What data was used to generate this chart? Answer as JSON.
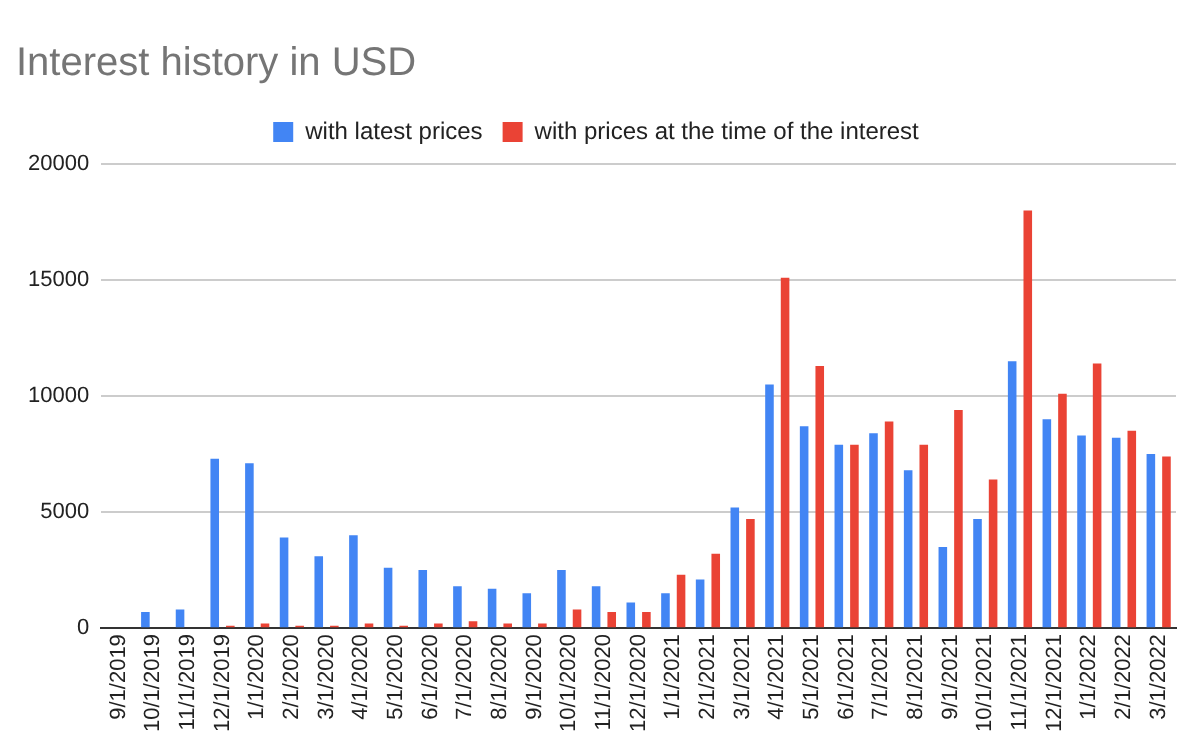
{
  "chart_data": {
    "type": "bar",
    "title": "Interest history in USD",
    "categories": [
      "9/1/2019",
      "10/1/2019",
      "11/1/2019",
      "12/1/2019",
      "1/1/2020",
      "2/1/2020",
      "3/1/2020",
      "4/1/2020",
      "5/1/2020",
      "6/1/2020",
      "7/1/2020",
      "8/1/2020",
      "9/1/2020",
      "10/1/2020",
      "11/1/2020",
      "12/1/2020",
      "1/1/2021",
      "2/1/2021",
      "3/1/2021",
      "4/1/2021",
      "5/1/2021",
      "6/1/2021",
      "7/1/2021",
      "8/1/2021",
      "9/1/2021",
      "10/1/2021",
      "11/1/2021",
      "12/1/2021",
      "1/1/2022",
      "2/1/2022",
      "3/1/2022"
    ],
    "series": [
      {
        "name": "with latest prices",
        "color": "#4285f4",
        "values": [
          0,
          700,
          800,
          7300,
          7100,
          3900,
          3100,
          4000,
          2600,
          2500,
          1800,
          1700,
          1500,
          2500,
          1800,
          1100,
          1500,
          2100,
          5200,
          10500,
          8700,
          7900,
          8400,
          6800,
          3500,
          4700,
          11500,
          9000,
          8300,
          8200,
          7500
        ]
      },
      {
        "name": "with prices at the time of the interest",
        "color": "#ea4335",
        "values": [
          0,
          0,
          0,
          100,
          200,
          100,
          100,
          200,
          100,
          200,
          300,
          200,
          200,
          800,
          700,
          700,
          2300,
          3200,
          4700,
          15100,
          11300,
          7900,
          8900,
          7900,
          9400,
          6400,
          18000,
          10100,
          11400,
          8500,
          7400
        ]
      }
    ],
    "ylim": [
      0,
      20000
    ],
    "yticks": [
      0,
      5000,
      10000,
      15000,
      20000
    ],
    "grid": "y",
    "legend": "top"
  }
}
